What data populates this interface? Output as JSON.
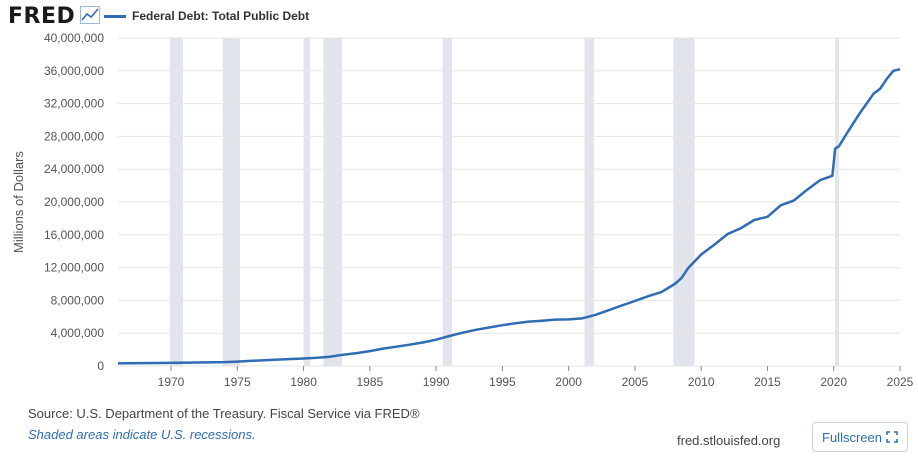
{
  "header": {
    "logo_text": "FRED",
    "logo_icon": "trend-graph-icon",
    "series_label": "Federal Debt: Total Public Debt"
  },
  "colors": {
    "series": "#2f6cb3",
    "recession": "#e1e4ea",
    "grid": "#e6e6e6",
    "plot_bg": "#ffffff"
  },
  "chart_data": {
    "type": "line",
    "ylabel": "Millions of Dollars",
    "xlim": [
      1966,
      2025
    ],
    "ylim": [
      0,
      40000000
    ],
    "y_ticks": [
      0,
      4000000,
      8000000,
      12000000,
      16000000,
      20000000,
      24000000,
      28000000,
      32000000,
      36000000,
      40000000
    ],
    "y_tick_labels": [
      "0",
      "4,000,000",
      "8,000,000",
      "12,000,000",
      "16,000,000",
      "20,000,000",
      "24,000,000",
      "28,000,000",
      "32,000,000",
      "36,000,000",
      "40,000,000"
    ],
    "x_ticks": [
      1970,
      1975,
      1980,
      1985,
      1990,
      1995,
      2000,
      2005,
      2010,
      2015,
      2020,
      2025
    ],
    "grid": true,
    "recessions": [
      [
        1969.9,
        1970.9
      ],
      [
        1973.9,
        1975.2
      ],
      [
        1980.0,
        1980.5
      ],
      [
        1981.5,
        1982.9
      ],
      [
        1990.5,
        1991.2
      ],
      [
        2001.2,
        2001.9
      ],
      [
        2007.9,
        2009.5
      ],
      [
        2020.1,
        2020.4
      ]
    ],
    "series": [
      {
        "name": "Federal Debt: Total Public Debt",
        "x": [
          1966,
          1968,
          1970,
          1972,
          1974,
          1975,
          1976,
          1978,
          1980,
          1981,
          1982,
          1983,
          1984,
          1985,
          1986,
          1987,
          1988,
          1989,
          1990,
          1991,
          1992,
          1993,
          1994,
          1995,
          1996,
          1997,
          1998,
          1999,
          2000,
          2001,
          2002,
          2003,
          2004,
          2005,
          2006,
          2007,
          2008,
          2008.5,
          2009,
          2010,
          2011,
          2012,
          2013,
          2014,
          2015,
          2016,
          2017,
          2018,
          2019,
          2019.9,
          2020.1,
          2020.4,
          2021,
          2022,
          2023,
          2023.5,
          2024,
          2024.5,
          2025
        ],
        "values": [
          320000,
          350000,
          380000,
          430000,
          480000,
          540000,
          620000,
          780000,
          910000,
          1000000,
          1140000,
          1380000,
          1570000,
          1820000,
          2120000,
          2350000,
          2600000,
          2860000,
          3210000,
          3660000,
          4060000,
          4410000,
          4690000,
          4970000,
          5220000,
          5410000,
          5530000,
          5660000,
          5680000,
          5810000,
          6230000,
          6790000,
          7380000,
          7930000,
          8510000,
          9010000,
          10000000,
          10700000,
          11900000,
          13600000,
          14800000,
          16100000,
          16800000,
          17800000,
          18200000,
          19600000,
          20200000,
          21500000,
          22700000,
          23200000,
          26500000,
          26800000,
          28400000,
          30900000,
          33200000,
          33800000,
          35000000,
          36000000,
          36200000
        ]
      }
    ]
  },
  "footer": {
    "source": "Source: U.S. Department of the Treasury. Fiscal Service via FRED®",
    "note": "Shaded areas indicate U.S. recessions.",
    "site": "fred.stlouisfed.org",
    "fullscreen_label": "Fullscreen",
    "fullscreen_icon": "expand-icon"
  }
}
